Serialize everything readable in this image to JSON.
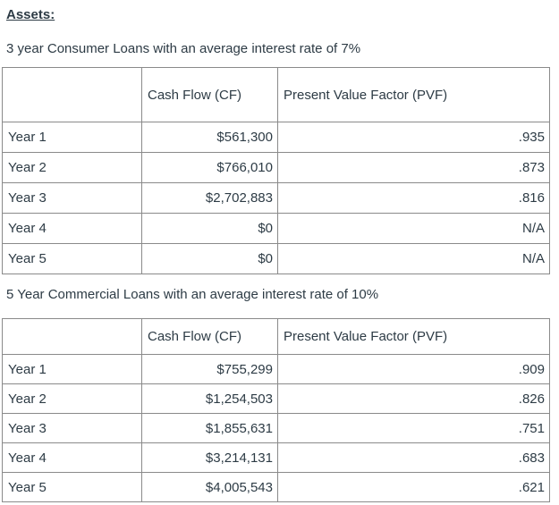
{
  "page": {
    "heading": "Assets:"
  },
  "sections": [
    {
      "caption": "3 year Consumer Loans with an average interest rate of 7%",
      "table": {
        "columns": [
          "",
          "Cash Flow (CF)",
          "Present Value Factor (PVF)"
        ],
        "rows": [
          {
            "year": "Year 1",
            "cf": "$561,300",
            "pvf": ".935"
          },
          {
            "year": "Year 2",
            "cf": "$766,010",
            "pvf": ".873"
          },
          {
            "year": "Year 3",
            "cf": "$2,702,883",
            "pvf": ".816"
          },
          {
            "year": "Year 4",
            "cf": "$0",
            "pvf": "N/A"
          },
          {
            "year": "Year 5",
            "cf": "$0",
            "pvf": "N/A"
          }
        ]
      }
    },
    {
      "caption": "5 Year Commercial Loans with an average interest rate of 10%",
      "table": {
        "columns": [
          "",
          "Cash Flow (CF)",
          "Present Value Factor (PVF)"
        ],
        "rows": [
          {
            "year": "Year 1",
            "cf": "$755,299",
            "pvf": ".909"
          },
          {
            "year": "Year 2",
            "cf": "$1,254,503",
            "pvf": ".826"
          },
          {
            "year": "Year 3",
            "cf": "$1,855,631",
            "pvf": ".751"
          },
          {
            "year": "Year 4",
            "cf": "$3,214,131",
            "pvf": ".683"
          },
          {
            "year": "Year 5",
            "cf": "$4,005,543",
            "pvf": ".621"
          }
        ]
      }
    }
  ],
  "colors": {
    "text": "#2D3B45",
    "table_border": "#8a8a8a",
    "background": "#ffffff"
  }
}
